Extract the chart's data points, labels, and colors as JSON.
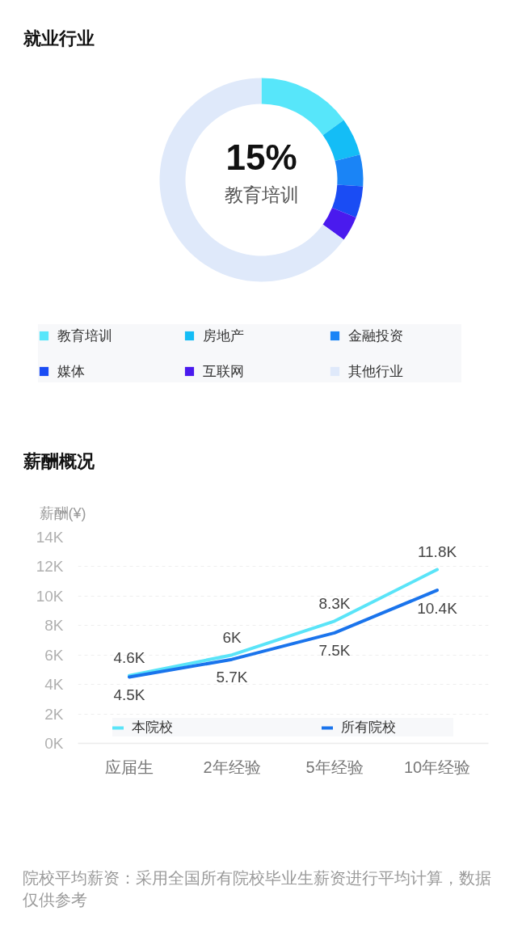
{
  "chart_data": [
    {
      "type": "donut",
      "title": "就业行业",
      "categories": [
        "教育培训",
        "房地产",
        "金融投资",
        "媒体",
        "互联网",
        "其他行业"
      ],
      "values": [
        15,
        6,
        5,
        5,
        4,
        65
      ],
      "colors": [
        "#57e6fa",
        "#14bdf6",
        "#1a84f6",
        "#1a4cf4",
        "#4a1aee",
        "#dfe9fa"
      ],
      "legend": "bottom",
      "annotations": [
        "15%",
        "教育培训"
      ]
    },
    {
      "type": "line",
      "title": "薪酬概况",
      "ylabel": "薪酬(¥)",
      "categories": [
        "应届生",
        "2年经验",
        "5年经验",
        "10年经验"
      ],
      "series": [
        {
          "name": "本院校",
          "color": "#5ae4f8",
          "values": [
            4600,
            6000,
            8300,
            11800
          ],
          "value_labels": [
            "4.6K",
            "6K",
            "8.3K",
            "11.8K"
          ]
        },
        {
          "name": "所有院校",
          "color": "#1a74ec",
          "values": [
            4500,
            5700,
            7500,
            10400
          ],
          "value_labels": [
            "4.5K",
            "5.7K",
            "7.5K",
            "10.4K"
          ]
        }
      ],
      "ylim": [
        0,
        14000
      ],
      "yticks": [
        {
          "value": 0,
          "label": "0K"
        },
        {
          "value": 2000,
          "label": "2K"
        },
        {
          "value": 4000,
          "label": "4K"
        },
        {
          "value": 6000,
          "label": "6K"
        },
        {
          "value": 8000,
          "label": "8K"
        },
        {
          "value": 10000,
          "label": "10K"
        },
        {
          "value": 12000,
          "label": "12K"
        },
        {
          "value": 14000,
          "label": "14K"
        }
      ],
      "grid": "y",
      "legend": "bottom",
      "annotations": [
        "院校平均薪资：采用全国所有院校毕业生薪资进行平均计算，数据仅供参考"
      ]
    }
  ]
}
